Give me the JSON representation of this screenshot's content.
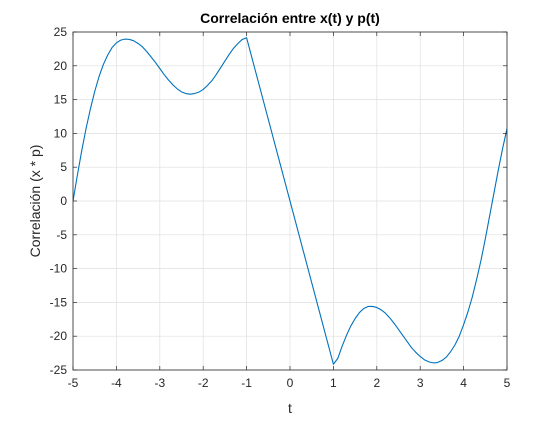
{
  "chart_data": {
    "type": "line",
    "title": "Correlación entre x(t) y p(t)",
    "xlabel": "t",
    "ylabel": "Correlación (x * p)",
    "xlim": [
      -5,
      5
    ],
    "ylim": [
      -25,
      25
    ],
    "xticks": [
      -5,
      -4,
      -3,
      -2,
      -1,
      0,
      1,
      2,
      3,
      4,
      5
    ],
    "yticks": [
      -25,
      -20,
      -15,
      -10,
      -5,
      0,
      5,
      10,
      15,
      20,
      25
    ],
    "grid": true,
    "line_color": "#0072BD",
    "series": [
      {
        "x": [
          -5,
          -4.9,
          -4.8,
          -4.7,
          -4.6,
          -4.5,
          -4.4,
          -4.3,
          -4.2,
          -4.1,
          -4.0,
          -3.9,
          -3.8,
          -3.7,
          -3.6,
          -3.5,
          -3.4,
          -3.3,
          -3.2,
          -3.1,
          -3.0,
          -2.9,
          -2.8,
          -2.7,
          -2.6,
          -2.5,
          -2.4,
          -2.3,
          -2.2,
          -2.1,
          -2.0,
          -1.9,
          -1.8,
          -1.7,
          -1.6,
          -1.5,
          -1.4,
          -1.3,
          -1.2,
          -1.1,
          -1.0,
          1.0,
          1.1,
          1.2,
          1.3,
          1.4,
          1.5,
          1.6,
          1.7,
          1.8,
          1.9,
          2.0,
          2.1,
          2.2,
          2.3,
          2.4,
          2.5,
          2.6,
          2.7,
          2.8,
          2.9,
          3.0,
          3.1,
          3.2,
          3.3,
          3.4,
          3.5,
          3.6,
          3.7,
          3.8,
          3.9,
          4.0,
          4.1,
          4.2,
          4.3,
          4.4,
          4.5,
          4.6,
          4.7,
          4.8,
          4.9,
          5.0
        ],
        "y": [
          0.0,
          3.8,
          7.4,
          10.7,
          13.6,
          16.2,
          18.4,
          20.2,
          21.6,
          22.7,
          23.4,
          23.8,
          23.95,
          23.9,
          23.7,
          23.3,
          22.8,
          22.1,
          21.3,
          20.5,
          19.6,
          18.7,
          17.9,
          17.2,
          16.6,
          16.15,
          15.9,
          15.8,
          15.9,
          16.1,
          16.5,
          17.1,
          17.8,
          18.7,
          19.7,
          20.7,
          21.7,
          22.6,
          23.3,
          23.9,
          24.15,
          -24.15,
          -23.3,
          -21.5,
          -19.9,
          -18.5,
          -17.4,
          -16.5,
          -15.9,
          -15.6,
          -15.6,
          -15.75,
          -16.1,
          -16.6,
          -17.3,
          -18.1,
          -19.0,
          -19.9,
          -20.8,
          -21.7,
          -22.4,
          -23.0,
          -23.5,
          -23.8,
          -23.95,
          -23.9,
          -23.6,
          -23.1,
          -22.3,
          -21.3,
          -20.0,
          -18.3,
          -16.4,
          -14.2,
          -11.6,
          -8.8,
          -5.6,
          -2.2,
          1.2,
          4.6,
          7.8,
          10.7
        ]
      }
    ]
  }
}
